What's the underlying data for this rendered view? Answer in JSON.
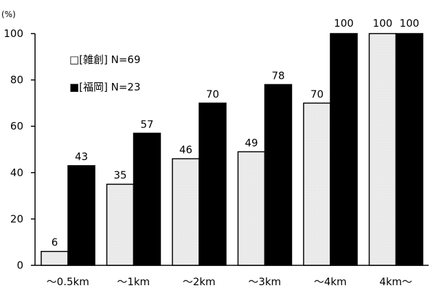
{
  "chart_data": {
    "type": "bar",
    "ylabel": "(%)",
    "ylim": [
      0,
      100
    ],
    "yticks": [
      "0",
      "20",
      "40",
      "60",
      "80",
      "100"
    ],
    "categories": [
      "～0.5km",
      "～1km",
      "～2km",
      "～3km",
      "～4km",
      "4km～"
    ],
    "series": [
      {
        "name": "□[雑創] N=69",
        "values": [
          6,
          35,
          46,
          49,
          70,
          100
        ],
        "color": "#e9e9e9"
      },
      {
        "name": "■[福岡] N=23",
        "values": [
          43,
          57,
          70,
          78,
          100,
          100
        ],
        "color": "#000000"
      }
    ],
    "legend_placement": "top-left",
    "grid": false
  }
}
